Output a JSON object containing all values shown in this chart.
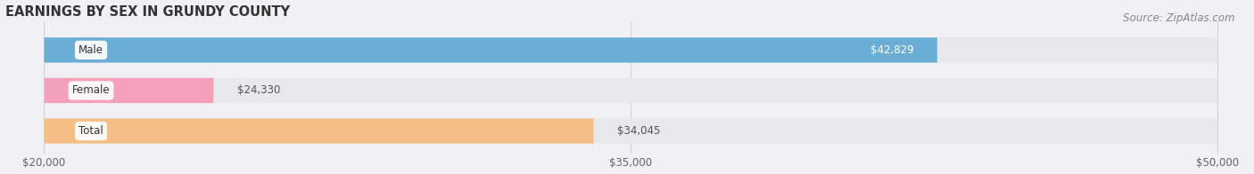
{
  "title": "EARNINGS BY SEX IN GRUNDY COUNTY",
  "source": "Source: ZipAtlas.com",
  "categories": [
    "Male",
    "Female",
    "Total"
  ],
  "values": [
    42829,
    24330,
    34045
  ],
  "bar_colors": [
    "#6aaed6",
    "#f4a0b8",
    "#f4be85"
  ],
  "bar_bg_color": "#e8e8ec",
  "value_labels": [
    "$42,829",
    "$24,330",
    "$34,045"
  ],
  "value_label_inside": [
    true,
    false,
    false
  ],
  "xmin": 20000,
  "xmax": 50000,
  "xticks": [
    20000,
    35000,
    50000
  ],
  "xtick_labels": [
    "$20,000",
    "$35,000",
    "$50,000"
  ],
  "bg_color": "#f0f0f5",
  "bar_height": 0.62,
  "bar_gap": 0.18,
  "title_fontsize": 10.5,
  "source_fontsize": 8.5,
  "tick_fontsize": 8.5,
  "label_fontsize": 8.5,
  "value_fontsize": 8.5
}
